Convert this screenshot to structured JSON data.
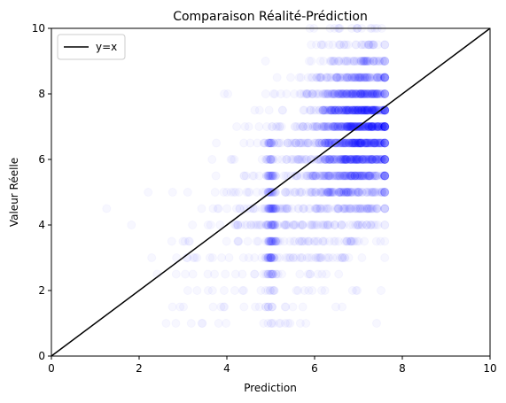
{
  "chart_data": {
    "type": "scatter",
    "title": "Comparaison Réalité-Prédiction",
    "xlabel": "Prediction",
    "ylabel": "Valeur Réelle",
    "xlim": [
      0,
      10
    ],
    "ylim": [
      0,
      10
    ],
    "xticks": [
      0,
      2,
      4,
      6,
      8,
      10
    ],
    "yticks": [
      0,
      2,
      4,
      6,
      8,
      10
    ],
    "grid": false,
    "legend_position": "top-left",
    "point_color": "#0000ff",
    "point_alpha": 0.03,
    "line_color": "#000000",
    "series": [
      {
        "type": "scatter",
        "description_clusters": [
          {
            "x_center": 6.8,
            "y_center": 6.6,
            "x_spread": 0.55,
            "y_spread": 1.3,
            "weight": 0.55
          },
          {
            "x_center": 7.2,
            "y_center": 7.3,
            "x_spread": 0.25,
            "y_spread": 1.2,
            "weight": 0.2
          },
          {
            "x_center": 5.0,
            "y_center": 4.2,
            "x_spread": 0.06,
            "y_spread": 1.4,
            "weight": 0.08
          },
          {
            "x_center": 5.6,
            "y_center": 4.8,
            "x_spread": 0.8,
            "y_spread": 1.6,
            "weight": 0.12
          },
          {
            "x_center": 4.2,
            "y_center": 3.2,
            "x_spread": 1.0,
            "y_spread": 1.4,
            "weight": 0.05
          }
        ],
        "x_range": [
          0.3,
          7.6
        ],
        "y_range": [
          1,
          9.8
        ]
      },
      {
        "type": "line",
        "name": "y=x",
        "x": [
          0,
          10
        ],
        "y": [
          0,
          10
        ]
      }
    ]
  }
}
